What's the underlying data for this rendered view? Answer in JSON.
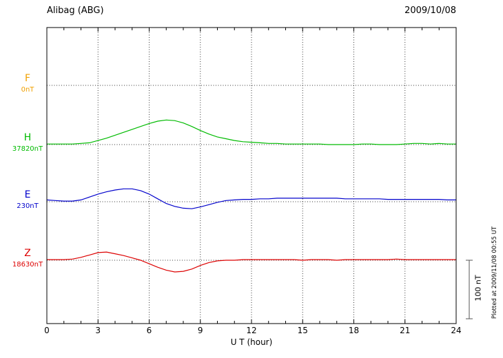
{
  "header": {
    "title": "Alibag (ABG)",
    "date": "2009/10/08"
  },
  "x_axis": {
    "label": "U T (hour)",
    "tick_labels": [
      "0",
      "3",
      "6",
      "9",
      "12",
      "15",
      "18",
      "21",
      "24"
    ],
    "min": 0,
    "max": 24,
    "major_step": 3,
    "minor_step": 1
  },
  "components": [
    {
      "letter": "F",
      "value_label": "0nT",
      "color": "#f0a000"
    },
    {
      "letter": "H",
      "value_label": "37820nT",
      "color": "#00bb00"
    },
    {
      "letter": "E",
      "value_label": "230nT",
      "color": "#0000cc"
    },
    {
      "letter": "Z",
      "value_label": "18630nT",
      "color": "#dd0000"
    }
  ],
  "scale_bar": {
    "label": "100 nT",
    "span_nT": 100
  },
  "plot_note": "Plotted at 2009/11/08 00:55 UT",
  "chart_data": {
    "type": "line",
    "title": "Alibag (ABG) magnetogram 2009/10/08",
    "xlabel": "U T (hour)",
    "xlim": [
      0,
      24
    ],
    "grid": "dotted vertical every 3 h, dotted horizontal at each component baseline",
    "legend_position": "left margin component labels",
    "x_hours": [
      0,
      0.5,
      1,
      1.5,
      2,
      2.5,
      3,
      3.5,
      4,
      4.5,
      5,
      5.5,
      6,
      6.5,
      7,
      7.5,
      8,
      8.5,
      9,
      9.5,
      10,
      10.5,
      11,
      11.5,
      12,
      12.5,
      13,
      13.5,
      14,
      14.5,
      15,
      15.5,
      16,
      16.5,
      17,
      17.5,
      18,
      18.5,
      19,
      19.5,
      20,
      20.5,
      21,
      21.5,
      22,
      22.5,
      23,
      23.5,
      24
    ],
    "series": [
      {
        "name": "F",
        "baseline_nT": 0,
        "color": "#f0a000",
        "deviation_nT": []
      },
      {
        "name": "H",
        "baseline_nT": 37820,
        "color": "#00bb00",
        "deviation_nT": [
          1,
          1,
          1,
          1,
          2,
          3,
          7,
          11,
          16,
          21,
          26,
          31,
          36,
          40,
          42,
          41,
          37,
          31,
          24,
          18,
          13,
          10,
          7,
          5,
          4,
          3,
          2,
          2,
          1,
          1,
          1,
          1,
          1,
          0,
          0,
          0,
          0,
          1,
          1,
          0,
          0,
          0,
          1,
          2,
          2,
          1,
          2,
          1,
          1
        ]
      },
      {
        "name": "E",
        "baseline_nT": 230,
        "color": "#0000cc",
        "deviation_nT": [
          3,
          2,
          1,
          1,
          3,
          8,
          13,
          17,
          20,
          22,
          22,
          19,
          13,
          5,
          -3,
          -8,
          -11,
          -12,
          -9,
          -5,
          -1,
          2,
          3,
          4,
          4,
          5,
          5,
          6,
          6,
          6,
          6,
          6,
          6,
          6,
          6,
          5,
          5,
          5,
          5,
          5,
          4,
          4,
          4,
          4,
          4,
          4,
          4,
          3,
          3
        ]
      },
      {
        "name": "Z",
        "baseline_nT": 18630,
        "color": "#dd0000",
        "deviation_nT": [
          1,
          1,
          1,
          2,
          5,
          9,
          13,
          14,
          11,
          8,
          4,
          0,
          -6,
          -12,
          -17,
          -20,
          -19,
          -15,
          -9,
          -4,
          -1,
          0,
          0,
          1,
          1,
          1,
          1,
          1,
          1,
          1,
          0,
          1,
          1,
          1,
          0,
          1,
          1,
          1,
          1,
          1,
          1,
          2,
          1,
          1,
          1,
          1,
          1,
          1,
          1
        ]
      }
    ]
  }
}
